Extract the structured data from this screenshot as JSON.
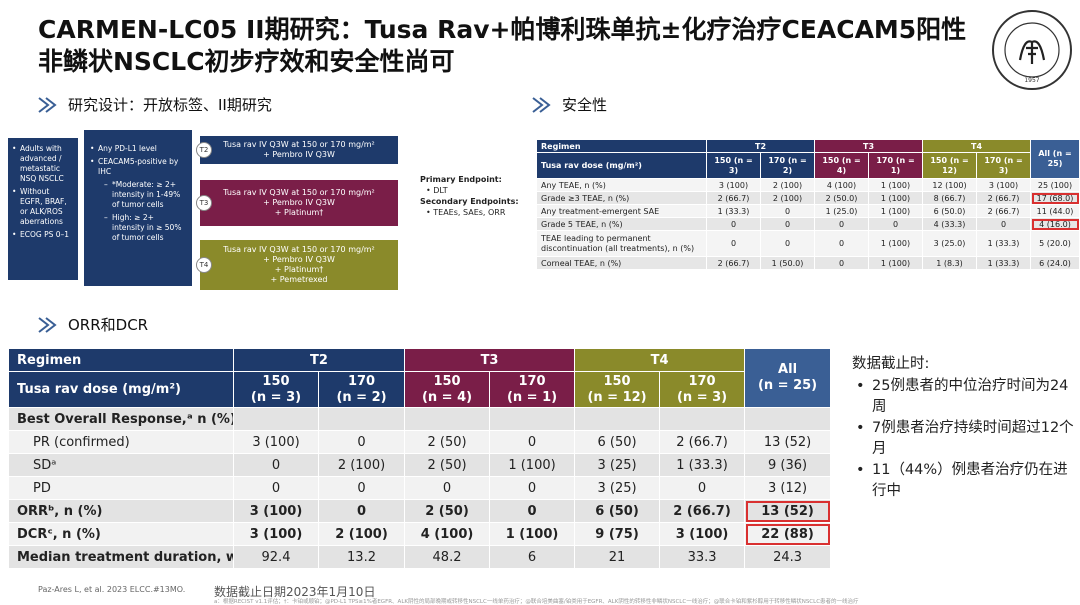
{
  "title": "CARMEN-LC05 II期研究：Tusa Rav+帕博利珠单抗±化疗治疗CEACAM5阳性非鳞状NSCLC初步疗效和安全性尚可",
  "logo": {
    "text": "SHANGHAI CHEST HOSPITAL",
    "year": "1957"
  },
  "colors": {
    "navy": "#1e3a6b",
    "maroon": "#7a1e48",
    "olive": "#8a8a2a",
    "accent_red": "#d93030"
  },
  "design": {
    "heading": "研究设计：开放标签、II期研究",
    "patients": [
      "Adults with advanced / metastatic NSQ NSCLC",
      "Without EGFR, BRAF, or ALK/ROS aberrations",
      "ECOG PS 0–1"
    ],
    "biomarker": {
      "items": [
        "Any PD-L1 level",
        "CEACAM5-positive by IHC"
      ],
      "moderate": "*Moderate: ≥ 2+ intensity in 1-49% of tumor cells",
      "high": "High: ≥ 2+ intensity in ≥ 50% of tumor cells"
    },
    "arms": [
      {
        "tag": "T2",
        "lines": [
          "Tusa rav IV Q3W at 150 or 170 mg/m²",
          "+ Pembro IV Q3W"
        ]
      },
      {
        "tag": "T3",
        "lines": [
          "Tusa rav IV Q3W at 150 or 170 mg/m²",
          "+ Pembro IV Q3W",
          "+ Platinum†"
        ]
      },
      {
        "tag": "T4",
        "lines": [
          "Tusa rav IV Q3W at 150 or 170 mg/m²",
          "+ Pembro IV Q3W",
          "+ Platinum†",
          "+ Pemetrexed"
        ]
      }
    ],
    "endpoints": {
      "primary_label": "Primary Endpoint:",
      "primary": "DLT",
      "secondary_label": "Secondary Endpoints:",
      "secondary": "TEAEs, SAEs, ORR"
    }
  },
  "safety": {
    "heading": "安全性",
    "regimen_label": "Regimen",
    "dose_label": "Tusa rav dose (mg/m²)",
    "groups": [
      "T2",
      "T3",
      "T4"
    ],
    "doses": [
      "150 (n = 3)",
      "170 (n = 2)",
      "150 (n = 4)",
      "170 (n = 1)",
      "150 (n = 12)",
      "170 (n = 3)",
      "All (n = 25)"
    ],
    "rows": [
      {
        "label": "Any TEAE, n (%)",
        "values": [
          "3 (100)",
          "2 (100)",
          "4 (100)",
          "1 (100)",
          "12 (100)",
          "3 (100)",
          "25 (100)"
        ]
      },
      {
        "label": "Grade ≥3 TEAE, n (%)",
        "values": [
          "2 (66.7)",
          "2 (100)",
          "2 (50.0)",
          "1 (100)",
          "8 (66.7)",
          "2 (66.7)",
          "17 (68.0)"
        ]
      },
      {
        "label": "Any treatment-emergent SAE",
        "values": [
          "1 (33.3)",
          "0",
          "1 (25.0)",
          "1 (100)",
          "6 (50.0)",
          "2 (66.7)",
          "11 (44.0)"
        ]
      },
      {
        "label": "Grade 5 TEAE, n (%)",
        "values": [
          "0",
          "0",
          "0",
          "0",
          "4 (33.3)",
          "0",
          "4 (16.0)"
        ]
      },
      {
        "label": "TEAE leading to permanent discontinuation (all treatments), n (%)",
        "values": [
          "0",
          "0",
          "0",
          "1 (100)",
          "3 (25.0)",
          "1 (33.3)",
          "5 (20.0)"
        ]
      },
      {
        "label": "Corneal TEAE, n (%)",
        "values": [
          "2 (66.7)",
          "1 (50.0)",
          "0",
          "1 (100)",
          "1 (8.3)",
          "1 (33.3)",
          "6 (24.0)"
        ]
      }
    ]
  },
  "efficacy": {
    "heading": "ORR和DCR",
    "regimen_label": "Regimen",
    "dose_label": "Tusa rav dose (mg/m²)",
    "groups": [
      "T2",
      "T3",
      "T4"
    ],
    "doses": [
      {
        "dose": "150",
        "n": "(n = 3)"
      },
      {
        "dose": "170",
        "n": "(n = 2)"
      },
      {
        "dose": "150",
        "n": "(n = 4)"
      },
      {
        "dose": "170",
        "n": "(n = 1)"
      },
      {
        "dose": "150",
        "n": "(n = 12)"
      },
      {
        "dose": "170",
        "n": "(n = 3)"
      },
      {
        "dose": "All",
        "n": "(n = 25)"
      }
    ],
    "bor_label": "Best Overall Response,ᵃ n (%)",
    "rows": [
      {
        "label": "PR (confirmed)",
        "values": [
          "3 (100)",
          "0",
          "2 (50)",
          "0",
          "6 (50)",
          "2 (66.7)",
          "13 (52)"
        ]
      },
      {
        "label": "SDᵃ",
        "values": [
          "0",
          "2 (100)",
          "2 (50)",
          "1 (100)",
          "3 (25)",
          "1 (33.3)",
          "9 (36)"
        ]
      },
      {
        "label": "PD",
        "values": [
          "0",
          "0",
          "0",
          "0",
          "3 (25)",
          "0",
          "3 (12)"
        ]
      },
      {
        "label": "ORRᵇ, n (%)",
        "values": [
          "3 (100)",
          "0",
          "2 (50)",
          "0",
          "6 (50)",
          "2 (66.7)",
          "13 (52)"
        ]
      },
      {
        "label": "DCRᶜ, n (%)",
        "values": [
          "3 (100)",
          "2 (100)",
          "4 (100)",
          "1 (100)",
          "9 (75)",
          "3 (100)",
          "22 (88)"
        ]
      },
      {
        "label": "Median treatment duration, weeks",
        "values": [
          "92.4",
          "13.2",
          "48.2",
          "6",
          "21",
          "33.3",
          "24.3"
        ]
      }
    ]
  },
  "notes": {
    "heading": "数据截止时:",
    "items": [
      "25例患者的中位治疗时间为24周",
      "7例患者治疗持续时间超过12个月",
      "11（44%）例患者治疗仍在进行中"
    ]
  },
  "footer": {
    "reference": "Paz-Ares L, et al. 2023 ELCC.#13MO.",
    "cutoff": "数据截止日期2023年1月10日",
    "footnote": "a：根据RECIST v1.1评估；†：卡铂或顺铂；@PD-L1 TPS≥1%者EGFR、ALK阴性的局部晚期或转移性NSCLC一线单药治疗；@联合培美曲塞/铂类用于EGFR、ALK阴性的转移性非鳞状NSCLC一线治疗；@联合卡铂和紫杉醇用于转移性鳞状NSCLC患者的一线治疗"
  }
}
